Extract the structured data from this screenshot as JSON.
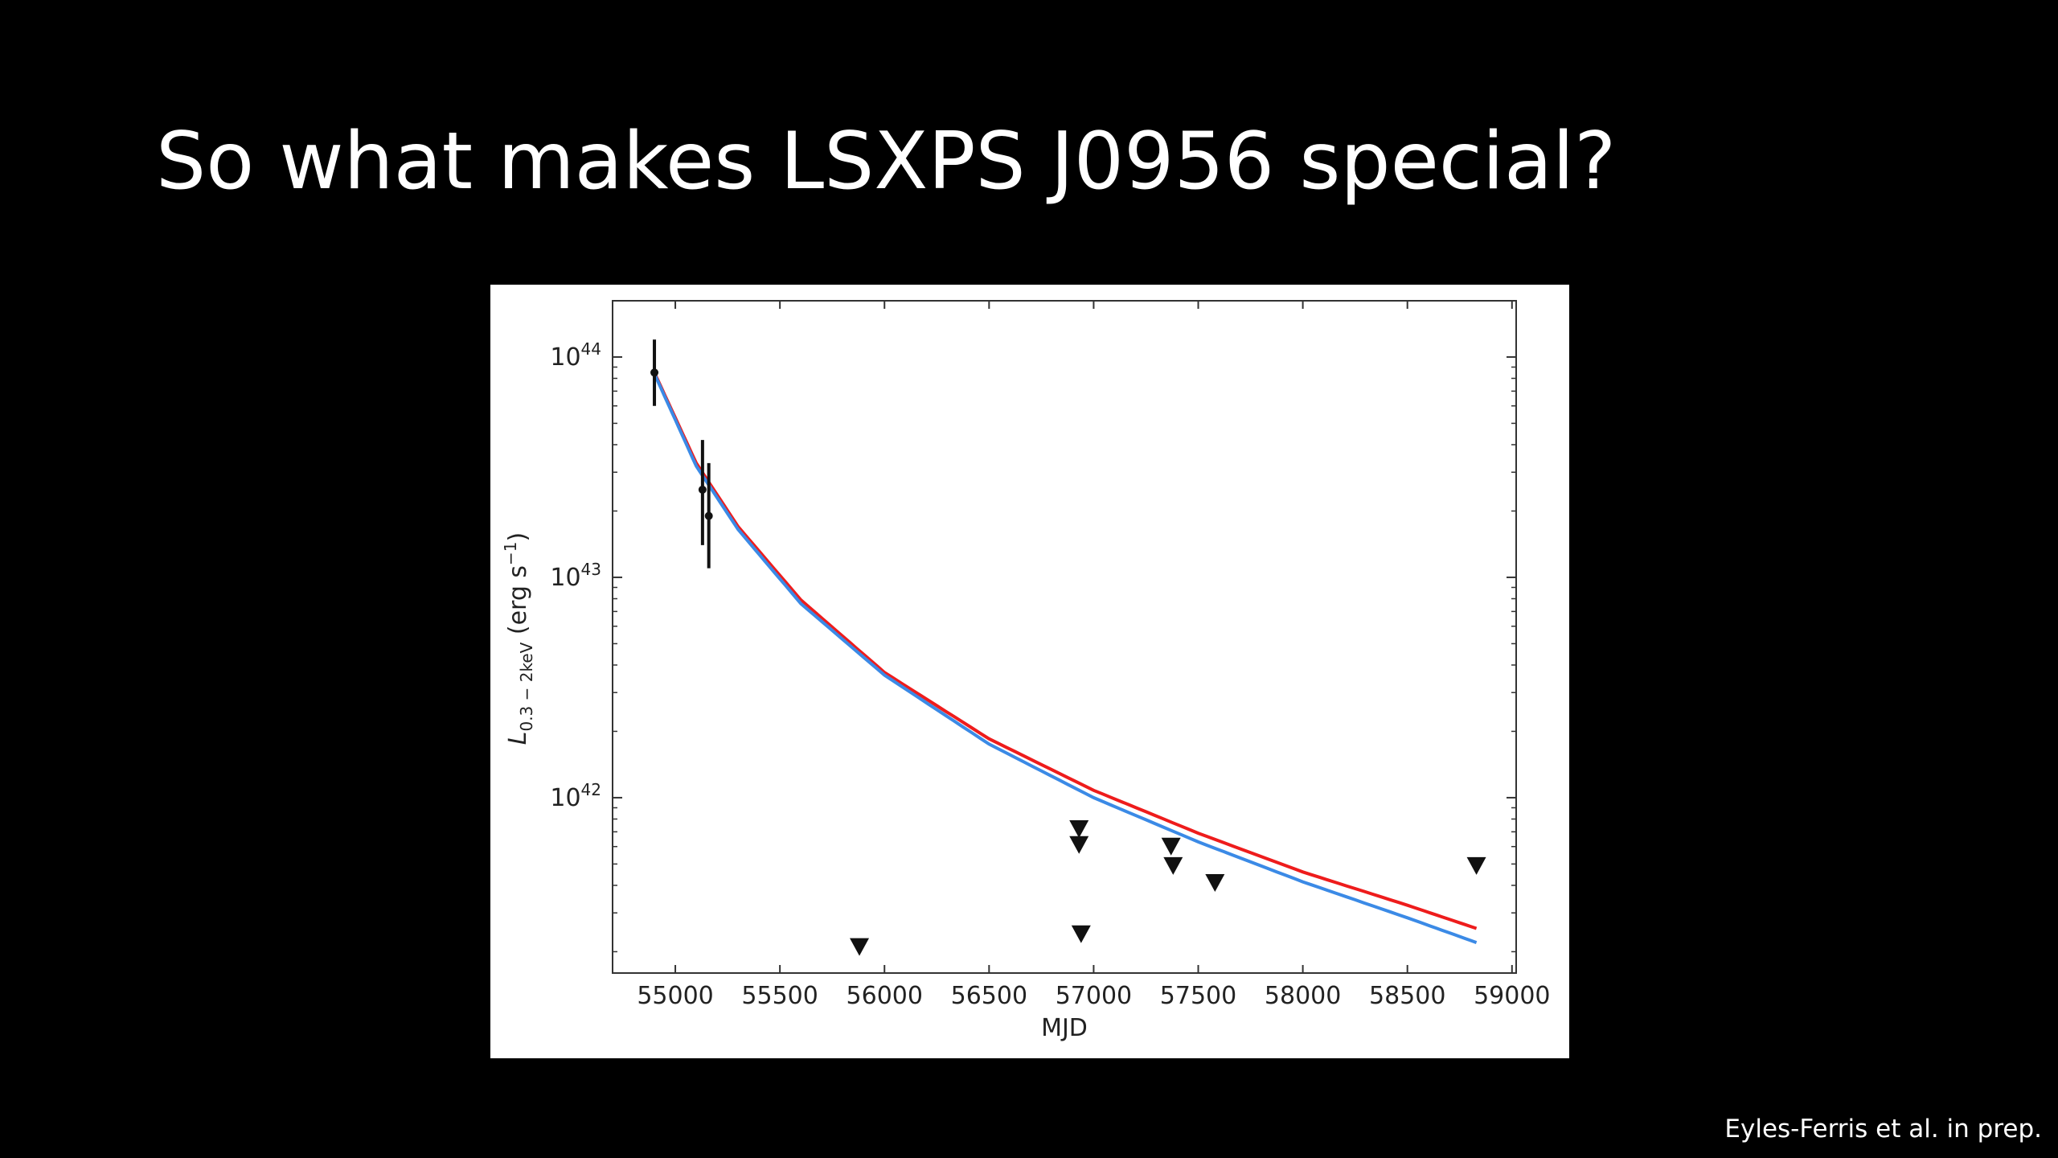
{
  "slide": {
    "title": "So what makes LSXPS J0956 special?",
    "credit": "Eyles-Ferris et al. in prep."
  },
  "chart_data": {
    "type": "scatter",
    "title": "",
    "xlabel": "MJD",
    "ylabel_main": "L",
    "ylabel_sub": "0.3 − 2keV",
    "ylabel_unit_prefix": " (erg s",
    "ylabel_unit_exp": "−1",
    "ylabel_unit_suffix": ")",
    "xlim": [
      54700,
      59020
    ],
    "ylim": [
      1.6e+41,
      1.8e+44
    ],
    "yscale": "log",
    "grid": false,
    "legend": "none",
    "x_ticks": [
      55000,
      55500,
      56000,
      56500,
      57000,
      57500,
      58000,
      58500,
      59000
    ],
    "x_tick_labels": [
      "55000",
      "55500",
      "56000",
      "56500",
      "57000",
      "57500",
      "58000",
      "58500",
      "59000"
    ],
    "y_ticks": [
      {
        "value": 1e+42,
        "base": "10",
        "exp": "42"
      },
      {
        "value": 1e+43,
        "base": "10",
        "exp": "43"
      },
      {
        "value": 1e+44,
        "base": "10",
        "exp": "44"
      }
    ],
    "detections": [
      {
        "x": 54900,
        "y": 8.5e+43,
        "ylo": 6e+43,
        "yhi": 1.2e+44
      },
      {
        "x": 55130,
        "y": 2.5e+43,
        "ylo": 1.4e+43,
        "yhi": 4.2e+43
      },
      {
        "x": 55160,
        "y": 1.9e+43,
        "ylo": 1.1e+43,
        "yhi": 3.3e+43
      }
    ],
    "upper_limits": [
      {
        "x": 55880,
        "y": 2.1e+41
      },
      {
        "x": 56930,
        "y": 7.2e+41
      },
      {
        "x": 56930,
        "y": 6.1e+41
      },
      {
        "x": 56940,
        "y": 2.4e+41
      },
      {
        "x": 57370,
        "y": 6e+41
      },
      {
        "x": 57380,
        "y": 4.9e+41
      },
      {
        "x": 57580,
        "y": 4.1e+41
      },
      {
        "x": 58830,
        "y": 4.9e+41
      }
    ],
    "series": [
      {
        "color": "#ee1c1c",
        "x": [
          54900,
          55100,
          55300,
          55600,
          56000,
          56500,
          57000,
          57500,
          58000,
          58500,
          58830
        ],
        "y": [
          8.5e+43,
          3.3e+43,
          1.7e+43,
          7.9e+42,
          3.7e+42,
          1.85e+42,
          1.08e+42,
          6.9e+41,
          4.6e+41,
          3.25e+41,
          2.55e+41
        ]
      },
      {
        "color": "#3b8ae6",
        "x": [
          54900,
          55100,
          55300,
          55600,
          56000,
          56500,
          57000,
          57500,
          58000,
          58500,
          58830
        ],
        "y": [
          8.4e+43,
          3.2e+43,
          1.65e+43,
          7.6e+42,
          3.6e+42,
          1.75e+42,
          1e+42,
          6.3e+41,
          4.15e+41,
          2.85e+41,
          2.2e+41
        ]
      }
    ]
  }
}
